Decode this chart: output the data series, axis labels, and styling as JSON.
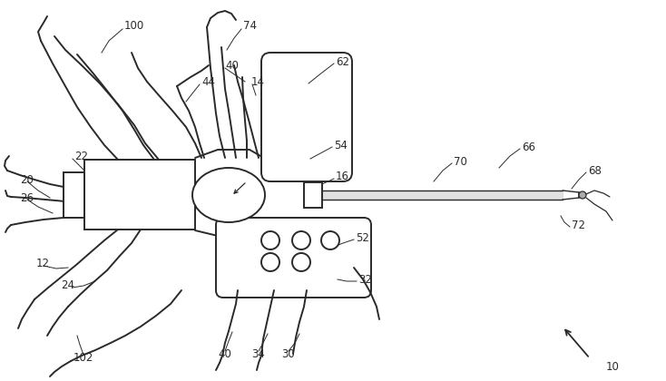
{
  "bg_color": "#ffffff",
  "line_color": "#2a2a2a",
  "label_color": "#2a2a2a",
  "label_fontsize": 8.5,
  "figsize": [
    7.34,
    4.2
  ],
  "dpi": 100
}
